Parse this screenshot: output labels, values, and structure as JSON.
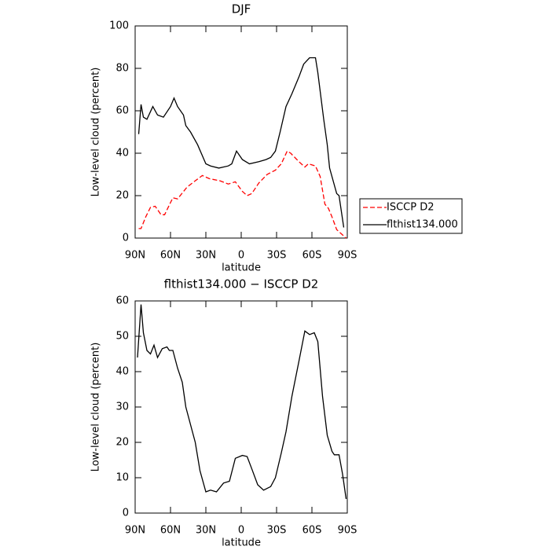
{
  "chart_data": [
    {
      "type": "line",
      "title": "DJF",
      "xlabel": "latitude",
      "ylabel": "Low-level cloud (percent)",
      "xlim": [
        90,
        -90
      ],
      "ylim": [
        0,
        100
      ],
      "xticks": [
        {
          "value": 90,
          "label": "90N"
        },
        {
          "value": 60,
          "label": "60N"
        },
        {
          "value": 30,
          "label": "30N"
        },
        0,
        {
          "value": -30,
          "label": "30S"
        },
        {
          "value": -60,
          "label": "60S"
        },
        {
          "value": -90,
          "label": "90S"
        }
      ],
      "yticks": [
        0,
        20,
        40,
        60,
        80,
        100
      ],
      "grid": false,
      "legend": "right",
      "series": [
        {
          "name": "ISCCP D2",
          "color": "#ff0000",
          "line_style": "dashed",
          "x": [
            87,
            85,
            81,
            77,
            73,
            68,
            65,
            58,
            54,
            46,
            39,
            33,
            27,
            18,
            11,
            5,
            -1,
            -5,
            -9,
            -15,
            -22,
            -29,
            -34,
            -39,
            -42,
            -49,
            -54,
            -57,
            -63,
            -67,
            -71,
            -74,
            -77,
            -81,
            -85,
            -89
          ],
          "values": [
            4.5,
            4.5,
            10,
            14.5,
            15,
            11,
            11,
            19,
            18.5,
            24,
            27,
            29.5,
            28,
            27,
            25.5,
            26.5,
            22,
            20,
            21,
            26,
            30,
            32,
            35,
            41,
            40,
            36,
            33.5,
            35,
            34,
            29,
            16,
            14,
            10,
            4,
            2,
            0
          ]
        },
        {
          "name": "flthist134.000",
          "color": "#000000",
          "line_style": "solid",
          "x": [
            87,
            85,
            83,
            80,
            75,
            71,
            66,
            60,
            57,
            54,
            49,
            47,
            43,
            37,
            30,
            26,
            19,
            11,
            8,
            4,
            -1,
            -7,
            -15,
            -21,
            -25,
            -29,
            -33,
            -38,
            -43,
            -49,
            -53,
            -58,
            -63,
            -65,
            -70,
            -73,
            -75,
            -81,
            -83,
            -87
          ],
          "values": [
            49,
            63,
            57,
            56,
            62,
            58,
            57,
            62,
            66,
            62,
            58,
            53,
            50,
            44,
            35,
            34,
            33,
            34,
            35,
            41,
            37,
            35,
            36,
            37,
            38,
            41,
            50,
            62,
            68,
            76,
            82,
            85,
            85,
            78,
            56,
            44,
            33,
            21,
            20,
            5
          ]
        }
      ]
    },
    {
      "type": "line",
      "title": "flthist134.000 − ISCCP D2",
      "xlabel": "latitude",
      "ylabel": "Low-level cloud (percent)",
      "xlim": [
        90,
        -90
      ],
      "ylim": [
        0,
        60
      ],
      "xticks": [
        {
          "value": 90,
          "label": "90N"
        },
        {
          "value": 60,
          "label": "60N"
        },
        {
          "value": 30,
          "label": "30N"
        },
        0,
        {
          "value": -30,
          "label": "30S"
        },
        {
          "value": -60,
          "label": "60S"
        },
        {
          "value": -90,
          "label": "90S"
        }
      ],
      "yticks": [
        0,
        10,
        20,
        30,
        40,
        50,
        60
      ],
      "grid": false,
      "color": "#000000",
      "x": [
        88,
        85,
        83,
        80,
        77,
        74,
        71,
        67,
        63,
        61,
        58,
        54,
        50,
        47,
        39,
        35,
        30,
        26,
        21,
        15,
        10,
        5,
        -1,
        -5,
        -9,
        -14,
        -19,
        -25,
        -29,
        -34,
        -38,
        -43,
        -49,
        -54,
        -58,
        -62,
        -65,
        -69,
        -73,
        -77,
        -79,
        -83,
        -86,
        -89
      ],
      "values": [
        44,
        59,
        51,
        46,
        45,
        47.5,
        44,
        46.5,
        47,
        46,
        46,
        41,
        37,
        30,
        20,
        12,
        6,
        6.5,
        6,
        8.5,
        9,
        15.5,
        16.3,
        16,
        12.5,
        8,
        6.5,
        7.5,
        10,
        17,
        23,
        33,
        43,
        51.5,
        50.5,
        51,
        48.5,
        33,
        22,
        17.5,
        16.5,
        16.5,
        11,
        4
      ]
    }
  ]
}
